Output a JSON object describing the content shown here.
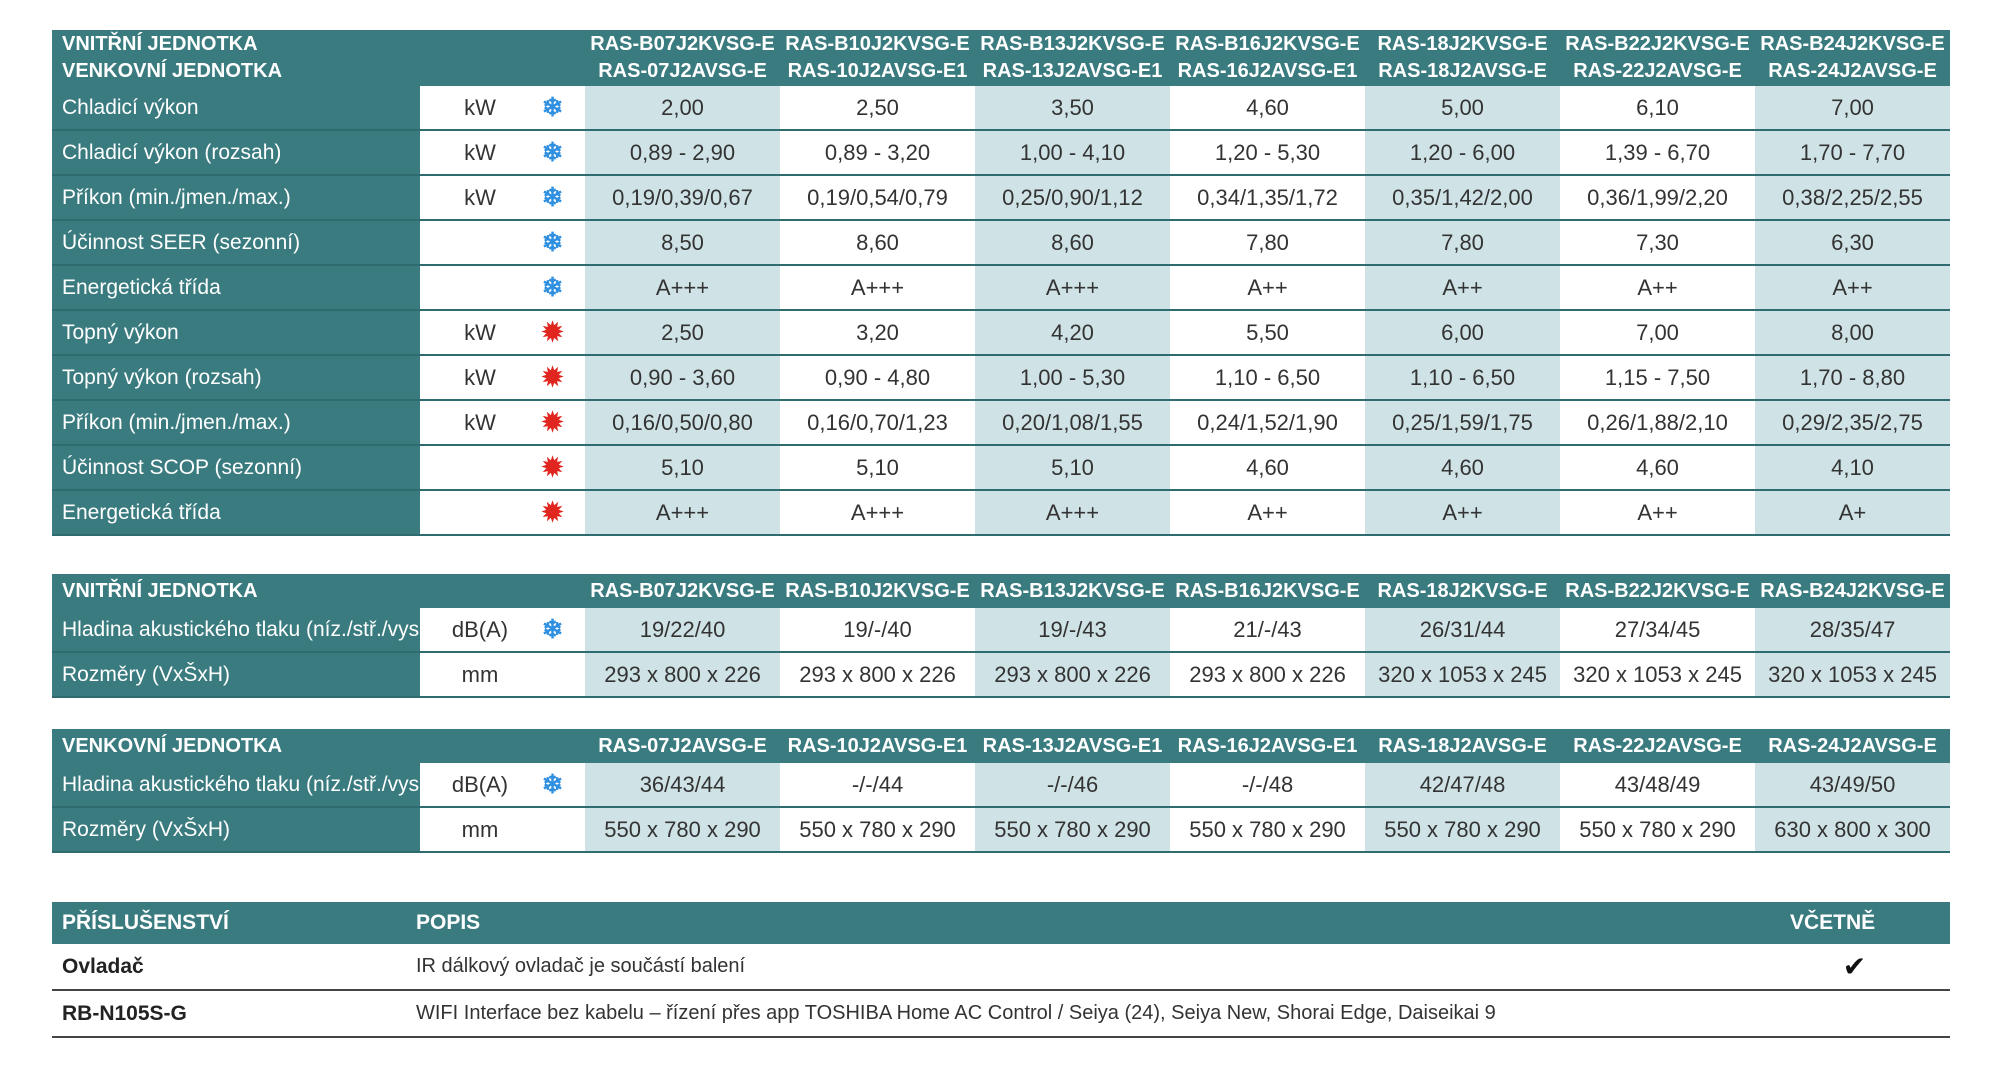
{
  "table1": {
    "header": [
      "VNITŘNÍ JEDNOTKA",
      "VENKOVNÍ JEDNOTKA"
    ],
    "models": [
      {
        "indoor": "RAS-B07J2KVSG-E",
        "outdoor": "RAS-07J2AVSG-E"
      },
      {
        "indoor": "RAS-B10J2KVSG-E",
        "outdoor": "RAS-10J2AVSG-E1"
      },
      {
        "indoor": "RAS-B13J2KVSG-E",
        "outdoor": "RAS-13J2AVSG-E1"
      },
      {
        "indoor": "RAS-B16J2KVSG-E",
        "outdoor": "RAS-16J2AVSG-E1"
      },
      {
        "indoor": "RAS-18J2KVSG-E",
        "outdoor": "RAS-18J2AVSG-E"
      },
      {
        "indoor": "RAS-B22J2KVSG-E",
        "outdoor": "RAS-22J2AVSG-E"
      },
      {
        "indoor": "RAS-B24J2KVSG-E",
        "outdoor": "RAS-24J2AVSG-E"
      }
    ],
    "rows": [
      {
        "label": "Chladicí výkon",
        "unit": "kW",
        "mode": "cool",
        "values": [
          "2,00",
          "2,50",
          "3,50",
          "4,60",
          "5,00",
          "6,10",
          "7,00"
        ]
      },
      {
        "label": "Chladicí výkon (rozsah)",
        "unit": "kW",
        "mode": "cool",
        "values": [
          "0,89 - 2,90",
          "0,89 - 3,20",
          "1,00 - 4,10",
          "1,20 - 5,30",
          "1,20 - 6,00",
          "1,39 - 6,70",
          "1,70 - 7,70"
        ]
      },
      {
        "label": "Příkon (min./jmen./max.)",
        "unit": "kW",
        "mode": "cool",
        "values": [
          "0,19/0,39/0,67",
          "0,19/0,54/0,79",
          "0,25/0,90/1,12",
          "0,34/1,35/1,72",
          "0,35/1,42/2,00",
          "0,36/1,99/2,20",
          "0,38/2,25/2,55"
        ]
      },
      {
        "label": "Účinnost SEER (sezonní)",
        "unit": "",
        "mode": "cool",
        "values": [
          "8,50",
          "8,60",
          "8,60",
          "7,80",
          "7,80",
          "7,30",
          "6,30"
        ]
      },
      {
        "label": "Energetická třída",
        "unit": "",
        "mode": "cool",
        "values": [
          "A+++",
          "A+++",
          "A+++",
          "A++",
          "A++",
          "A++",
          "A++"
        ]
      },
      {
        "label": "Topný výkon",
        "unit": "kW",
        "mode": "heat",
        "values": [
          "2,50",
          "3,20",
          "4,20",
          "5,50",
          "6,00",
          "7,00",
          "8,00"
        ]
      },
      {
        "label": "Topný výkon (rozsah)",
        "unit": "kW",
        "mode": "heat",
        "values": [
          "0,90 - 3,60",
          "0,90 - 4,80",
          "1,00 - 5,30",
          "1,10 - 6,50",
          "1,10 - 6,50",
          "1,15 - 7,50",
          "1,70 - 8,80"
        ]
      },
      {
        "label": "Příkon (min./jmen./max.)",
        "unit": "kW",
        "mode": "heat",
        "values": [
          "0,16/0,50/0,80",
          "0,16/0,70/1,23",
          "0,20/1,08/1,55",
          "0,24/1,52/1,90",
          "0,25/1,59/1,75",
          "0,26/1,88/2,10",
          "0,29/2,35/2,75"
        ]
      },
      {
        "label": "Účinnost SCOP (sezonní)",
        "unit": "",
        "mode": "heat",
        "values": [
          "5,10",
          "5,10",
          "5,10",
          "4,60",
          "4,60",
          "4,60",
          "4,10"
        ]
      },
      {
        "label": "Energetická třída",
        "unit": "",
        "mode": "heat",
        "values": [
          "A+++",
          "A+++",
          "A+++",
          "A++",
          "A++",
          "A++",
          "A+"
        ]
      }
    ]
  },
  "table2": {
    "header": "VNITŘNÍ JEDNOTKA",
    "models": [
      "RAS-B07J2KVSG-E",
      "RAS-B10J2KVSG-E",
      "RAS-B13J2KVSG-E",
      "RAS-B16J2KVSG-E",
      "RAS-18J2KVSG-E",
      "RAS-B22J2KVSG-E",
      "RAS-B24J2KVSG-E"
    ],
    "rows": [
      {
        "label": "Hladina akustického tlaku (níz./stř./vys.)",
        "unit": "dB(A)",
        "mode": "cool",
        "values": [
          "19/22/40",
          "19/-/40",
          "19/-/43",
          "21/-/43",
          "26/31/44",
          "27/34/45",
          "28/35/47"
        ]
      },
      {
        "label": "Rozměry (VxŠxH)",
        "unit": "mm",
        "mode": "",
        "values": [
          "293 x 800 x 226",
          "293 x 800 x 226",
          "293 x 800 x 226",
          "293 x 800 x 226",
          "320 x 1053 x 245",
          "320 x 1053 x 245",
          "320 x 1053 x 245"
        ]
      }
    ]
  },
  "table3": {
    "header": "VENKOVNÍ JEDNOTKA",
    "models": [
      "RAS-07J2AVSG-E",
      "RAS-10J2AVSG-E1",
      "RAS-13J2AVSG-E1",
      "RAS-16J2AVSG-E1",
      "RAS-18J2AVSG-E",
      "RAS-22J2AVSG-E",
      "RAS-24J2AVSG-E"
    ],
    "rows": [
      {
        "label": "Hladina akustického tlaku (níz./stř./vys.)",
        "unit": "dB(A)",
        "mode": "cool",
        "values": [
          "36/43/44",
          "-/-/44",
          "-/-/46",
          "-/-/48",
          "42/47/48",
          "43/48/49",
          "43/49/50"
        ]
      },
      {
        "label": "Rozměry (VxŠxH)",
        "unit": "mm",
        "mode": "",
        "values": [
          "550 x 780 x 290",
          "550 x 780 x 290",
          "550 x 780 x 290",
          "550 x 780 x 290",
          "550 x 780 x 290",
          "550 x 780 x 290",
          "630 x 800 x 300"
        ]
      }
    ]
  },
  "accessories": {
    "headers": [
      "PŘÍSLUŠENSTVÍ",
      "POPIS",
      "VČETNĚ"
    ],
    "rows": [
      {
        "name": "Ovladač",
        "description": "IR dálkový ovladač je součástí balení",
        "included": "✔"
      },
      {
        "name": "RB-N105S-G",
        "description": "WIFI Interface bez kabelu – řízení přes app TOSHIBA Home AC Control / Seiya (24), Seiya New, Shorai Edge, Daiseikai 9",
        "included": ""
      }
    ]
  },
  "icons": {
    "cool": "snowflake-icon",
    "heat": "sun-icon"
  },
  "colors": {
    "header": "#3a7b7f",
    "alt_cell": "#cfe3e6",
    "cool_icon": "#2f8fe0",
    "heat_icon": "#e0261f"
  }
}
